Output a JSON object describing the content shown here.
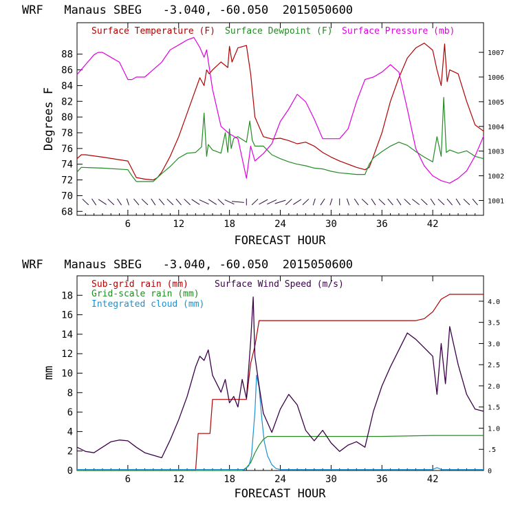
{
  "colors": {
    "temperature": "#b00000",
    "dewpoint": "#228b22",
    "pressure": "#e000e0",
    "subgrid_rain": "#b00000",
    "grid_rain": "#228b22",
    "cloud": "#1e8fd0",
    "wind": "#3a0048",
    "axes": "#000000"
  },
  "chart_data": [
    {
      "type": "line",
      "title": "WRF   Manaus SBEG   -3.040, -60.050  2015050600",
      "xlabel": "FORECAST HOUR",
      "ylabel": "Degrees F",
      "xlim": [
        0,
        48
      ],
      "ylim": [
        67.5,
        92
      ],
      "y2lim": [
        1000.4,
        1008.2
      ],
      "xticks": [
        6,
        12,
        18,
        24,
        30,
        36,
        42
      ],
      "yticks": [
        68,
        70,
        72,
        74,
        76,
        78,
        80,
        82,
        84,
        86,
        88
      ],
      "y2ticks": [
        1001,
        1002,
        1003,
        1004,
        1005,
        1006,
        1007
      ],
      "y2tick_labels": [
        "1001",
        "1002",
        "1003",
        "1004",
        "1005",
        "1006",
        "1007"
      ],
      "legend": [
        "Surface Temperature (F)",
        "Surface Dewpoint (F)",
        "Surface Pressure (mb)"
      ],
      "legend_placement": "top",
      "series": [
        {
          "name": "Surface Temperature (F)",
          "axis": "left",
          "x": [
            0,
            0.5,
            1,
            3,
            6,
            7,
            8,
            9,
            9.5,
            10,
            11,
            12,
            13,
            14,
            14.5,
            15,
            15.3,
            15.6,
            16,
            17,
            17.8,
            18,
            18.3,
            19,
            20,
            20.5,
            21,
            22,
            23,
            24,
            25,
            26,
            27,
            28,
            29,
            30,
            31,
            32,
            33,
            34,
            34.5,
            35,
            36,
            37,
            38,
            39,
            40,
            41,
            42,
            42.5,
            43,
            43.4,
            43.7,
            44,
            45,
            46,
            47,
            48
          ],
          "y": [
            74.7,
            75.2,
            75.2,
            74.9,
            74.4,
            72.3,
            72.1,
            72.0,
            72.3,
            73.0,
            75.0,
            77.5,
            80.5,
            83.5,
            85.0,
            84.0,
            86.0,
            85.5,
            86.0,
            87.0,
            86.3,
            89.0,
            87.0,
            88.8,
            89.1,
            85.5,
            80.0,
            77.5,
            77.2,
            77.3,
            77.0,
            76.6,
            76.8,
            76.3,
            75.5,
            74.9,
            74.4,
            74.0,
            73.6,
            73.3,
            73.6,
            75.0,
            78.0,
            82.0,
            85.0,
            87.5,
            88.8,
            89.4,
            88.5,
            86.0,
            84.0,
            89.3,
            84.5,
            86.0,
            85.5,
            82.0,
            79.0,
            78.2
          ]
        },
        {
          "name": "Surface Dewpoint (F)",
          "axis": "left",
          "x": [
            0,
            0.5,
            3,
            6,
            6.5,
            7,
            9,
            9.5,
            10,
            11,
            12,
            13,
            14,
            14.7,
            15,
            15.3,
            15.5,
            16,
            17,
            17.5,
            17.8,
            18,
            18.2,
            18.5,
            19,
            20,
            20.4,
            20.7,
            21,
            22,
            23,
            24,
            25,
            26,
            27,
            28,
            29,
            30,
            31,
            32,
            33,
            34,
            34.5,
            35,
            36,
            37,
            38,
            39,
            40,
            41,
            42,
            42.5,
            43,
            43.3,
            43.6,
            44,
            45,
            46,
            47,
            48
          ],
          "y": [
            73.0,
            73.6,
            73.5,
            73.3,
            72.5,
            71.8,
            71.8,
            72.3,
            72.8,
            73.7,
            74.8,
            75.4,
            75.5,
            76.2,
            80.5,
            75.0,
            76.5,
            75.8,
            75.4,
            78.0,
            75.5,
            78.5,
            76.0,
            77.3,
            77.5,
            76.8,
            79.5,
            77.0,
            76.3,
            76.3,
            75.2,
            74.7,
            74.3,
            74.0,
            73.8,
            73.5,
            73.4,
            73.1,
            72.9,
            72.8,
            72.7,
            72.7,
            74.0,
            74.8,
            75.6,
            76.3,
            76.8,
            76.4,
            75.6,
            74.9,
            74.3,
            77.5,
            75.0,
            82.5,
            75.5,
            75.8,
            75.4,
            75.7,
            75.0,
            74.7
          ]
        },
        {
          "name": "Surface Pressure (mb)",
          "axis": "right",
          "x": [
            0,
            0.5,
            1,
            2,
            2.5,
            3,
            4,
            5,
            6,
            6.5,
            7,
            8,
            9,
            10,
            11,
            12,
            13,
            13.8,
            14.5,
            15,
            15.3,
            16,
            17,
            18,
            19,
            20,
            20.5,
            21,
            22,
            23,
            24,
            25,
            26,
            27,
            28,
            29,
            30,
            31,
            32,
            33,
            34,
            35,
            36,
            37,
            38,
            39,
            40,
            41,
            42,
            43,
            44,
            45,
            46,
            47,
            48
          ],
          "y": [
            1006.1,
            1006.3,
            1006.5,
            1006.9,
            1007.0,
            1007.0,
            1006.8,
            1006.6,
            1005.9,
            1005.9,
            1006.0,
            1006.0,
            1006.3,
            1006.6,
            1007.1,
            1007.3,
            1007.5,
            1007.6,
            1007.2,
            1006.8,
            1007.1,
            1005.5,
            1004.0,
            1003.7,
            1003.5,
            1001.9,
            1003.2,
            1002.6,
            1002.9,
            1003.3,
            1004.2,
            1004.7,
            1005.3,
            1005.0,
            1004.3,
            1003.5,
            1003.5,
            1003.5,
            1003.9,
            1005.0,
            1005.9,
            1006.0,
            1006.2,
            1006.5,
            1006.2,
            1004.7,
            1003.1,
            1002.4,
            1002.0,
            1001.8,
            1001.7,
            1001.9,
            1002.2,
            1002.8,
            1003.6
          ]
        }
      ],
      "wind_barbs": {
        "y_level": 69.2,
        "hours": [
          1,
          2,
          3,
          4,
          5,
          6,
          7,
          8,
          9,
          10,
          11,
          12,
          13,
          14,
          15,
          16,
          17,
          18,
          19,
          20,
          21,
          22,
          23,
          24,
          25,
          26,
          27,
          28,
          29,
          30,
          31,
          32,
          33,
          34,
          35,
          36,
          37,
          38,
          39,
          40,
          41,
          42,
          43,
          44,
          45,
          46,
          47
        ],
        "direction_deg": [
          120,
          110,
          130,
          120,
          110,
          100,
          115,
          120,
          110,
          115,
          120,
          115,
          120,
          130,
          140,
          130,
          120,
          140,
          170,
          90,
          60,
          45,
          40,
          30,
          60,
          50,
          60,
          80,
          70,
          80,
          90,
          100,
          110,
          120,
          110,
          120,
          115,
          110,
          120,
          125,
          120,
          110,
          120,
          115,
          110,
          120,
          115
        ]
      }
    },
    {
      "type": "line",
      "title": "WRF   Manaus SBEG   -3.040, -60.050  2015050600",
      "xlabel": "FORECAST HOUR",
      "ylabel": "mm",
      "xlim": [
        0,
        48
      ],
      "ylim": [
        0,
        20
      ],
      "y2lim": [
        0,
        4.6
      ],
      "xticks": [
        6,
        12,
        18,
        24,
        30,
        36,
        42
      ],
      "yticks": [
        0,
        2,
        4,
        6,
        8,
        10,
        12,
        14,
        16,
        18
      ],
      "y2ticks": [
        0,
        0.5,
        1.0,
        1.5,
        2.0,
        2.5,
        3.0,
        3.5,
        4.0
      ],
      "y2tick_labels": [
        "0",
        ".5",
        "1.0",
        "1.5",
        "2.0",
        "2.5",
        "3.0",
        "3.5",
        "4.0"
      ],
      "legend": [
        "Sub-grid rain (mm)",
        "Surface Wind Speed (m/s)",
        "Grid-scale rain (mm)",
        "Integrated cloud (mm)"
      ],
      "legend_placement": "top-left",
      "series": [
        {
          "name": "Sub-grid rain (mm)",
          "axis": "left",
          "x": [
            0,
            14,
            14.3,
            15,
            15.7,
            16,
            17,
            18,
            19,
            20,
            20.5,
            21,
            21.5,
            22,
            24,
            30,
            36,
            40,
            41,
            42,
            43,
            44,
            48
          ],
          "y": [
            0,
            0,
            3.8,
            3.8,
            3.8,
            7.3,
            7.3,
            7.3,
            7.3,
            7.3,
            11.0,
            12.8,
            15.4,
            15.4,
            15.4,
            15.4,
            15.4,
            15.4,
            15.6,
            16.3,
            17.6,
            18.1,
            18.1
          ]
        },
        {
          "name": "Grid-scale rain (mm)",
          "axis": "left",
          "x": [
            0,
            19.5,
            20,
            20.5,
            21,
            21.5,
            22,
            22.5,
            24,
            30,
            36,
            42,
            48
          ],
          "y": [
            0,
            0,
            0.3,
            0.8,
            1.8,
            2.6,
            3.2,
            3.5,
            3.5,
            3.5,
            3.5,
            3.6,
            3.6
          ]
        },
        {
          "name": "Integrated cloud (mm)",
          "axis": "left",
          "x": [
            0,
            19.8,
            20.3,
            20.6,
            21,
            21.2,
            21.5,
            21.8,
            22.1,
            22.5,
            23,
            23.5,
            24,
            42,
            42.5,
            43,
            48
          ],
          "y": [
            0.1,
            0.1,
            0.5,
            1.5,
            6.0,
            9.8,
            8.5,
            5.5,
            3.0,
            1.5,
            0.6,
            0.2,
            0.1,
            0.1,
            0.3,
            0.1,
            0.1
          ]
        },
        {
          "name": "Surface Wind Speed (m/s)",
          "axis": "right",
          "x": [
            0,
            0.5,
            1,
            2,
            3,
            4,
            5,
            6,
            7,
            8,
            9,
            10,
            11,
            12,
            13,
            14,
            14.5,
            15,
            15.5,
            16,
            17,
            17.5,
            18,
            18.5,
            19,
            19.5,
            20,
            20.5,
            20.8,
            21,
            21.5,
            22,
            23,
            24,
            25,
            26,
            27,
            28,
            29,
            30,
            31,
            32,
            33,
            34,
            35,
            36,
            37,
            38,
            39,
            40,
            41,
            42,
            42.5,
            43,
            43.5,
            44,
            45,
            46,
            47,
            48
          ],
          "y": [
            0.55,
            0.5,
            0.45,
            0.42,
            0.55,
            0.68,
            0.72,
            0.7,
            0.55,
            0.42,
            0.36,
            0.3,
            0.72,
            1.2,
            1.75,
            2.45,
            2.7,
            2.6,
            2.85,
            2.25,
            1.85,
            2.15,
            1.6,
            1.75,
            1.5,
            2.15,
            1.7,
            3.05,
            4.1,
            2.7,
            2.0,
            1.35,
            0.9,
            1.45,
            1.8,
            1.55,
            0.95,
            0.7,
            0.95,
            0.65,
            0.45,
            0.6,
            0.68,
            0.55,
            1.4,
            2.0,
            2.45,
            2.85,
            3.25,
            3.1,
            2.9,
            2.7,
            1.8,
            3.0,
            2.05,
            3.4,
            2.5,
            1.8,
            1.45,
            1.4
          ]
        }
      ]
    }
  ]
}
